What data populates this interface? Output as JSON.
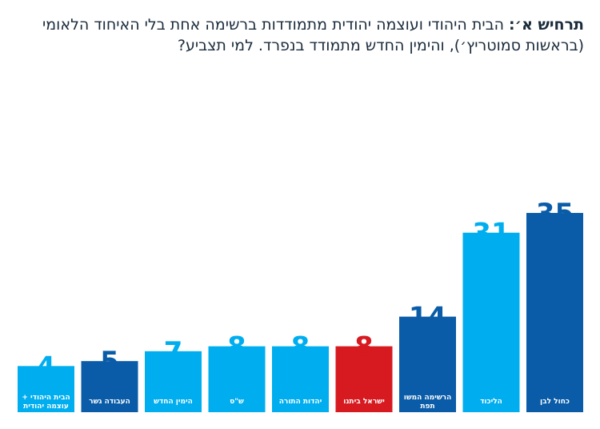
{
  "title": {
    "prefix": "תרחיש א׳:",
    "text": " הבית היהודי ועוצמה יהודית מתמודדות ברשימה אחת בלי האיחוד הלאומי (בראשות סמוטריץ׳), והימין החדש מתמודד בנפרד. למי תצביע?"
  },
  "chart_data": {
    "type": "bar",
    "title": "תרחיש א׳: הבית היהודי ועוצמה יהודית מתמודדות ברשימה אחת בלי האיחוד הלאומי (בראשות סמוטריץ׳), והימין החדש מתמודד בנפרד. למי תצביע?",
    "xlabel": "",
    "ylabel": "",
    "ylim": [
      0,
      35
    ],
    "categories": [
      "הבית היהודי + עוצמה יהודית",
      "העבודה גשר",
      "הימין החדש",
      "ש\"ס",
      "יהדות התורה",
      "ישראל ביתנו",
      "הרשימה המשותפת",
      "הליכוד",
      "כחול לבן"
    ],
    "label_lines": [
      [
        "הבית היהודי +",
        "עוצמה יהודית"
      ],
      [
        "העבודה גשר"
      ],
      [
        "הימין החדש"
      ],
      [
        "ש\"ס"
      ],
      [
        "יהדות התורה"
      ],
      [
        "ישראל ביתנו"
      ],
      [
        "הרשימה המשו",
        "תפת"
      ],
      [
        "הליכוד"
      ],
      [
        "כחול לבן"
      ]
    ],
    "values": [
      4,
      5,
      7,
      8,
      8,
      8,
      14,
      31,
      35
    ],
    "colors": [
      "#00aeef",
      "#0a5ca8",
      "#00aeef",
      "#00aeef",
      "#00aeef",
      "#d71920",
      "#0a5ca8",
      "#00aeef",
      "#0a5ca8"
    ]
  }
}
